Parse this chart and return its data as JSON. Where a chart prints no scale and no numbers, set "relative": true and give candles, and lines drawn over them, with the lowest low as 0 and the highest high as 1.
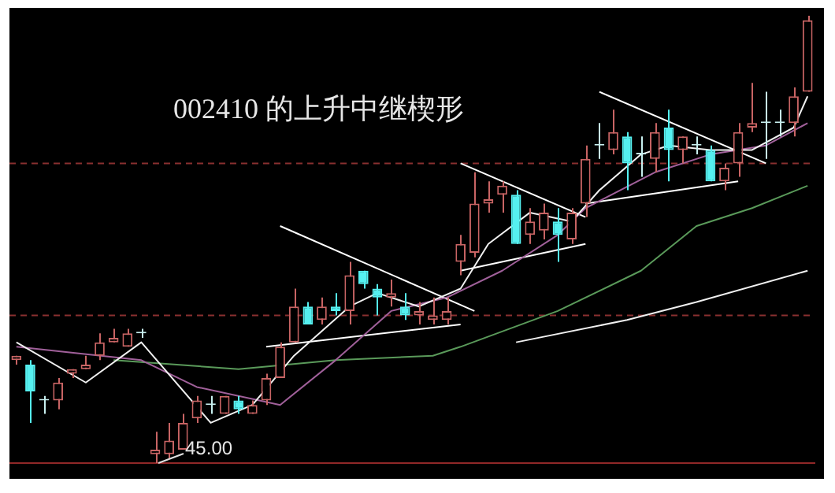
{
  "chart_data": {
    "type": "candlestick",
    "title": "002410 的上升中继楔形",
    "relative": true,
    "categories": [
      null,
      null,
      null,
      null,
      null,
      null,
      null,
      null,
      null,
      null,
      null,
      null,
      null,
      null,
      null,
      null,
      null,
      null,
      null,
      null,
      null,
      null,
      null,
      null,
      null,
      null,
      null,
      null,
      null,
      null,
      null,
      null,
      null,
      null,
      null,
      null,
      null,
      null,
      null,
      null,
      null,
      null,
      null,
      null,
      null,
      null,
      null,
      null,
      null,
      null,
      null,
      null,
      null,
      null,
      null,
      null,
      null,
      null
    ],
    "ohlc": [
      [
        0.23,
        0.24,
        0.22,
        0.24
      ],
      [
        0.22,
        0.23,
        0.09,
        0.16
      ],
      [
        0.14,
        0.15,
        0.11,
        0.14
      ],
      [
        0.14,
        0.19,
        0.12,
        0.18
      ],
      [
        0.2,
        0.21,
        0.19,
        0.21
      ],
      [
        0.21,
        0.24,
        0.21,
        0.22
      ],
      [
        0.24,
        0.29,
        0.23,
        0.27
      ],
      [
        0.27,
        0.3,
        0.27,
        0.28
      ],
      [
        0.26,
        0.3,
        0.26,
        0.29
      ],
      [
        0.29,
        0.3,
        0.28,
        0.29
      ],
      [
        0.02,
        0.07,
        0,
        0.03
      ],
      [
        0.02,
        0.09,
        0.01,
        0.05
      ],
      [
        0.03,
        0.11,
        0.03,
        0.09
      ],
      [
        0.1,
        0.15,
        0.09,
        0.14
      ],
      [
        0.13,
        0.15,
        0.11,
        0.13
      ],
      [
        0.11,
        0.15,
        0.11,
        0.15
      ],
      [
        0.14,
        0.15,
        0.11,
        0.12
      ],
      [
        0.11,
        0.14,
        0.11,
        0.13
      ],
      [
        0.14,
        0.2,
        0.13,
        0.19
      ],
      [
        0.19,
        0.27,
        0.19,
        0.26
      ],
      [
        0.27,
        0.39,
        0.27,
        0.35
      ],
      [
        0.35,
        0.36,
        0.31,
        0.31
      ],
      [
        0.32,
        0.37,
        0.31,
        0.35
      ],
      [
        0.35,
        0.38,
        0.33,
        0.34
      ],
      [
        0.34,
        0.45,
        0.31,
        0.42
      ],
      [
        0.43,
        0.43,
        0.39,
        0.4
      ],
      [
        0.39,
        0.4,
        0.33,
        0.37
      ],
      [
        0.37,
        0.41,
        0.35,
        0.38
      ],
      [
        0.35,
        0.38,
        0.32,
        0.33
      ],
      [
        0.33,
        0.36,
        0.31,
        0.34
      ],
      [
        0.32,
        0.37,
        0.31,
        0.33
      ],
      [
        0.32,
        0.37,
        0.31,
        0.34
      ],
      [
        0.45,
        0.51,
        0.42,
        0.49
      ],
      [
        0.47,
        0.65,
        0.46,
        0.58
      ],
      [
        0.58,
        0.63,
        0.56,
        0.59
      ],
      [
        0.6,
        0.63,
        0.56,
        0.62
      ],
      [
        0.6,
        0.61,
        0.49,
        0.49
      ],
      [
        0.51,
        0.57,
        0.49,
        0.54
      ],
      [
        0.52,
        0.58,
        0.5,
        0.56
      ],
      [
        0.54,
        0.57,
        0.45,
        0.51
      ],
      [
        0.5,
        0.57,
        0.49,
        0.56
      ],
      [
        0.58,
        0.71,
        0.55,
        0.68
      ],
      [
        0.71,
        0.76,
        0.68,
        0.71
      ],
      [
        0.7,
        0.79,
        0.69,
        0.74
      ],
      [
        0.73,
        0.74,
        0.61,
        0.67
      ],
      [
        0.69,
        0.73,
        0.64,
        0.69
      ],
      [
        0.68,
        0.76,
        0.65,
        0.74
      ],
      [
        0.75,
        0.79,
        0.63,
        0.7
      ],
      [
        0.7,
        0.73,
        0.67,
        0.73
      ],
      [
        0.71,
        0.73,
        0.69,
        0.71
      ],
      [
        0.7,
        0.71,
        0.63,
        0.63
      ],
      [
        0.63,
        0.67,
        0.61,
        0.66
      ],
      [
        0.67,
        0.76,
        0.64,
        0.74
      ],
      [
        0.75,
        0.85,
        0.74,
        0.76
      ],
      [
        0.76,
        0.83,
        0.68,
        0.76
      ],
      [
        0.76,
        0.79,
        0.73,
        0.76
      ],
      [
        0.76,
        0.84,
        0.73,
        0.82
      ],
      [
        0.83,
        1,
        0.83,
        0.99
      ]
    ],
    "colors": [
      "#c86464",
      "#55f0f0",
      "#c8f0f0",
      "#c86464",
      "#c86464",
      "#c86464",
      "#c86464",
      "#c86464",
      "#c86464",
      "#c8f0f0",
      "#c86464",
      "#c86464",
      "#c86464",
      "#c86464",
      "#c8f0f0",
      "#c86464",
      "#55f0f0",
      "#c86464",
      "#c86464",
      "#c86464",
      "#c86464",
      "#55f0f0",
      "#c86464",
      "#55f0f0",
      "#c86464",
      "#55f0f0",
      "#55f0f0",
      "#c86464",
      "#55f0f0",
      "#c86464",
      "#c86464",
      "#c86464",
      "#c86464",
      "#c86464",
      "#c86464",
      "#c86464",
      "#55f0f0",
      "#c86464",
      "#c86464",
      "#55f0f0",
      "#c86464",
      "#c86464",
      "#c8f0f0",
      "#c86464",
      "#55f0f0",
      "#c8f0f0",
      "#c86464",
      "#55f0f0",
      "#c86464",
      "#c8f0f0",
      "#55f0f0",
      "#c86464",
      "#c86464",
      "#c86464",
      "#c8f0f0",
      "#c8f0f0",
      "#c86464",
      "#c86464"
    ],
    "series": [
      {
        "type": "line",
        "color": "#f0f0f0",
        "values": [
          0.27,
          null,
          null,
          null,
          null,
          0.18,
          null,
          null,
          null,
          0.27,
          null,
          null,
          null,
          null,
          0.09,
          null,
          null,
          0.13,
          null,
          null,
          0.24,
          null,
          null,
          null,
          0.35,
          null,
          0.38,
          null,
          null,
          0.35,
          null,
          null,
          0.39,
          null,
          0.49,
          null,
          null,
          0.56,
          null,
          null,
          0.54,
          null,
          0.61,
          null,
          null,
          0.69,
          null,
          0.71,
          null,
          null,
          0.7,
          null,
          null,
          0.7,
          null,
          null,
          0.75,
          0.82
        ]
      },
      {
        "type": "line",
        "color": "#a0609a",
        "values": [
          0.26,
          null,
          null,
          null,
          null,
          null,
          null,
          null,
          null,
          0.23,
          null,
          null,
          null,
          0.17,
          null,
          null,
          null,
          null,
          null,
          0.13,
          null,
          null,
          null,
          0.23,
          null,
          null,
          null,
          0.34,
          null,
          null,
          null,
          0.37,
          null,
          null,
          null,
          0.43,
          null,
          null,
          null,
          0.51,
          null,
          0.57,
          null,
          null,
          null,
          null,
          0.65,
          null,
          null,
          null,
          0.69,
          null,
          null,
          null,
          0.71,
          null,
          null,
          0.76
        ]
      },
      {
        "type": "line",
        "color": "#5a9a5a",
        "values": [
          null,
          null,
          null,
          null,
          null,
          null,
          null,
          0.23,
          null,
          null,
          null,
          null,
          null,
          null,
          null,
          null,
          0.21,
          null,
          null,
          null,
          null,
          null,
          null,
          0.23,
          null,
          null,
          null,
          null,
          null,
          null,
          0.24,
          null,
          0.26,
          null,
          null,
          null,
          null,
          null,
          null,
          0.34,
          null,
          null,
          null,
          null,
          null,
          0.43,
          null,
          null,
          null,
          0.53,
          null,
          null,
          null,
          0.57,
          null,
          null,
          null,
          0.62
        ]
      },
      {
        "type": "line",
        "color": "#f0f0f0",
        "values": [
          null,
          null,
          null,
          null,
          null,
          null,
          null,
          null,
          null,
          null,
          null,
          null,
          null,
          null,
          null,
          null,
          null,
          null,
          null,
          null,
          null,
          null,
          null,
          null,
          null,
          null,
          null,
          null,
          null,
          null,
          null,
          null,
          null,
          null,
          null,
          null,
          0.27,
          null,
          null,
          null,
          null,
          null,
          null,
          null,
          0.32,
          null,
          null,
          null,
          null,
          0.36,
          null,
          null,
          null,
          null,
          null,
          null,
          null,
          0.43
        ]
      },
      {
        "type": "line",
        "color": "#ffffff",
        "values": [
          null,
          null,
          null,
          null,
          null,
          null,
          null,
          null,
          null,
          null,
          null,
          null,
          null,
          null,
          null,
          null,
          null,
          null,
          null,
          0.53,
          null,
          null,
          null,
          null,
          null,
          null,
          null,
          null,
          null,
          null,
          null,
          null,
          null,
          0.34,
          null,
          null,
          null,
          null,
          null,
          null,
          null,
          null,
          null,
          null,
          null,
          null,
          null,
          null,
          null,
          null,
          null,
          null,
          null,
          null,
          null,
          null,
          null,
          null
        ]
      },
      {
        "type": "line",
        "color": "#ffffff",
        "values": [
          null,
          null,
          null,
          null,
          null,
          null,
          null,
          null,
          null,
          null,
          null,
          null,
          null,
          null,
          null,
          null,
          null,
          null,
          0.26,
          null,
          null,
          null,
          null,
          null,
          null,
          null,
          null,
          null,
          null,
          null,
          null,
          null,
          0.31,
          null,
          null,
          null,
          null,
          null,
          null,
          null,
          null,
          null,
          null,
          null,
          null,
          null,
          null,
          null,
          null,
          null,
          null,
          null,
          null,
          null,
          null,
          null,
          null,
          null
        ]
      },
      {
        "type": "line",
        "color": "#ffffff",
        "values": [
          null,
          null,
          null,
          null,
          null,
          null,
          null,
          null,
          null,
          null,
          null,
          null,
          null,
          null,
          null,
          null,
          null,
          null,
          null,
          null,
          null,
          null,
          null,
          null,
          null,
          null,
          null,
          null,
          null,
          null,
          null,
          null,
          0.67,
          null,
          null,
          null,
          null,
          null,
          null,
          null,
          null,
          0.55,
          null,
          null,
          null,
          null,
          null,
          null,
          null,
          null,
          null,
          null,
          null,
          null,
          null,
          null,
          null,
          null
        ]
      },
      {
        "type": "line",
        "color": "#ffffff",
        "values": [
          null,
          null,
          null,
          null,
          null,
          null,
          null,
          null,
          null,
          null,
          null,
          null,
          null,
          null,
          null,
          null,
          null,
          null,
          null,
          null,
          null,
          null,
          null,
          null,
          null,
          null,
          null,
          null,
          null,
          null,
          null,
          null,
          0.43,
          null,
          null,
          null,
          null,
          null,
          null,
          null,
          null,
          0.49,
          null,
          null,
          null,
          null,
          null,
          null,
          null,
          null,
          null,
          null,
          null,
          null,
          null,
          null,
          null,
          null
        ]
      },
      {
        "type": "line",
        "color": "#ffffff",
        "values": [
          null,
          null,
          null,
          null,
          null,
          null,
          null,
          null,
          null,
          null,
          null,
          null,
          null,
          null,
          null,
          null,
          null,
          null,
          null,
          null,
          null,
          null,
          null,
          null,
          null,
          null,
          null,
          null,
          null,
          null,
          null,
          null,
          null,
          null,
          null,
          null,
          null,
          null,
          null,
          null,
          null,
          null,
          0.83,
          null,
          null,
          null,
          null,
          null,
          null,
          null,
          null,
          null,
          null,
          null,
          0.67,
          null,
          null,
          null
        ]
      },
      {
        "type": "line",
        "color": "#ffffff",
        "values": [
          null,
          null,
          null,
          null,
          null,
          null,
          null,
          null,
          null,
          null,
          null,
          null,
          null,
          null,
          null,
          null,
          null,
          null,
          null,
          null,
          null,
          null,
          null,
          null,
          null,
          null,
          null,
          null,
          null,
          null,
          null,
          null,
          null,
          null,
          null,
          null,
          null,
          null,
          null,
          null,
          null,
          0.58,
          null,
          null,
          null,
          null,
          null,
          null,
          null,
          null,
          null,
          null,
          0.63,
          null,
          null,
          null,
          null,
          null
        ]
      }
    ],
    "ref_lines": [
      {
        "axis": "y",
        "value": 0.67,
        "color": "#8a3030",
        "line_style": "dashed"
      },
      {
        "axis": "y",
        "value": 0.33,
        "color": "#8a3030",
        "line_style": "dashed"
      }
    ],
    "annotations": [
      "45.00"
    ]
  }
}
